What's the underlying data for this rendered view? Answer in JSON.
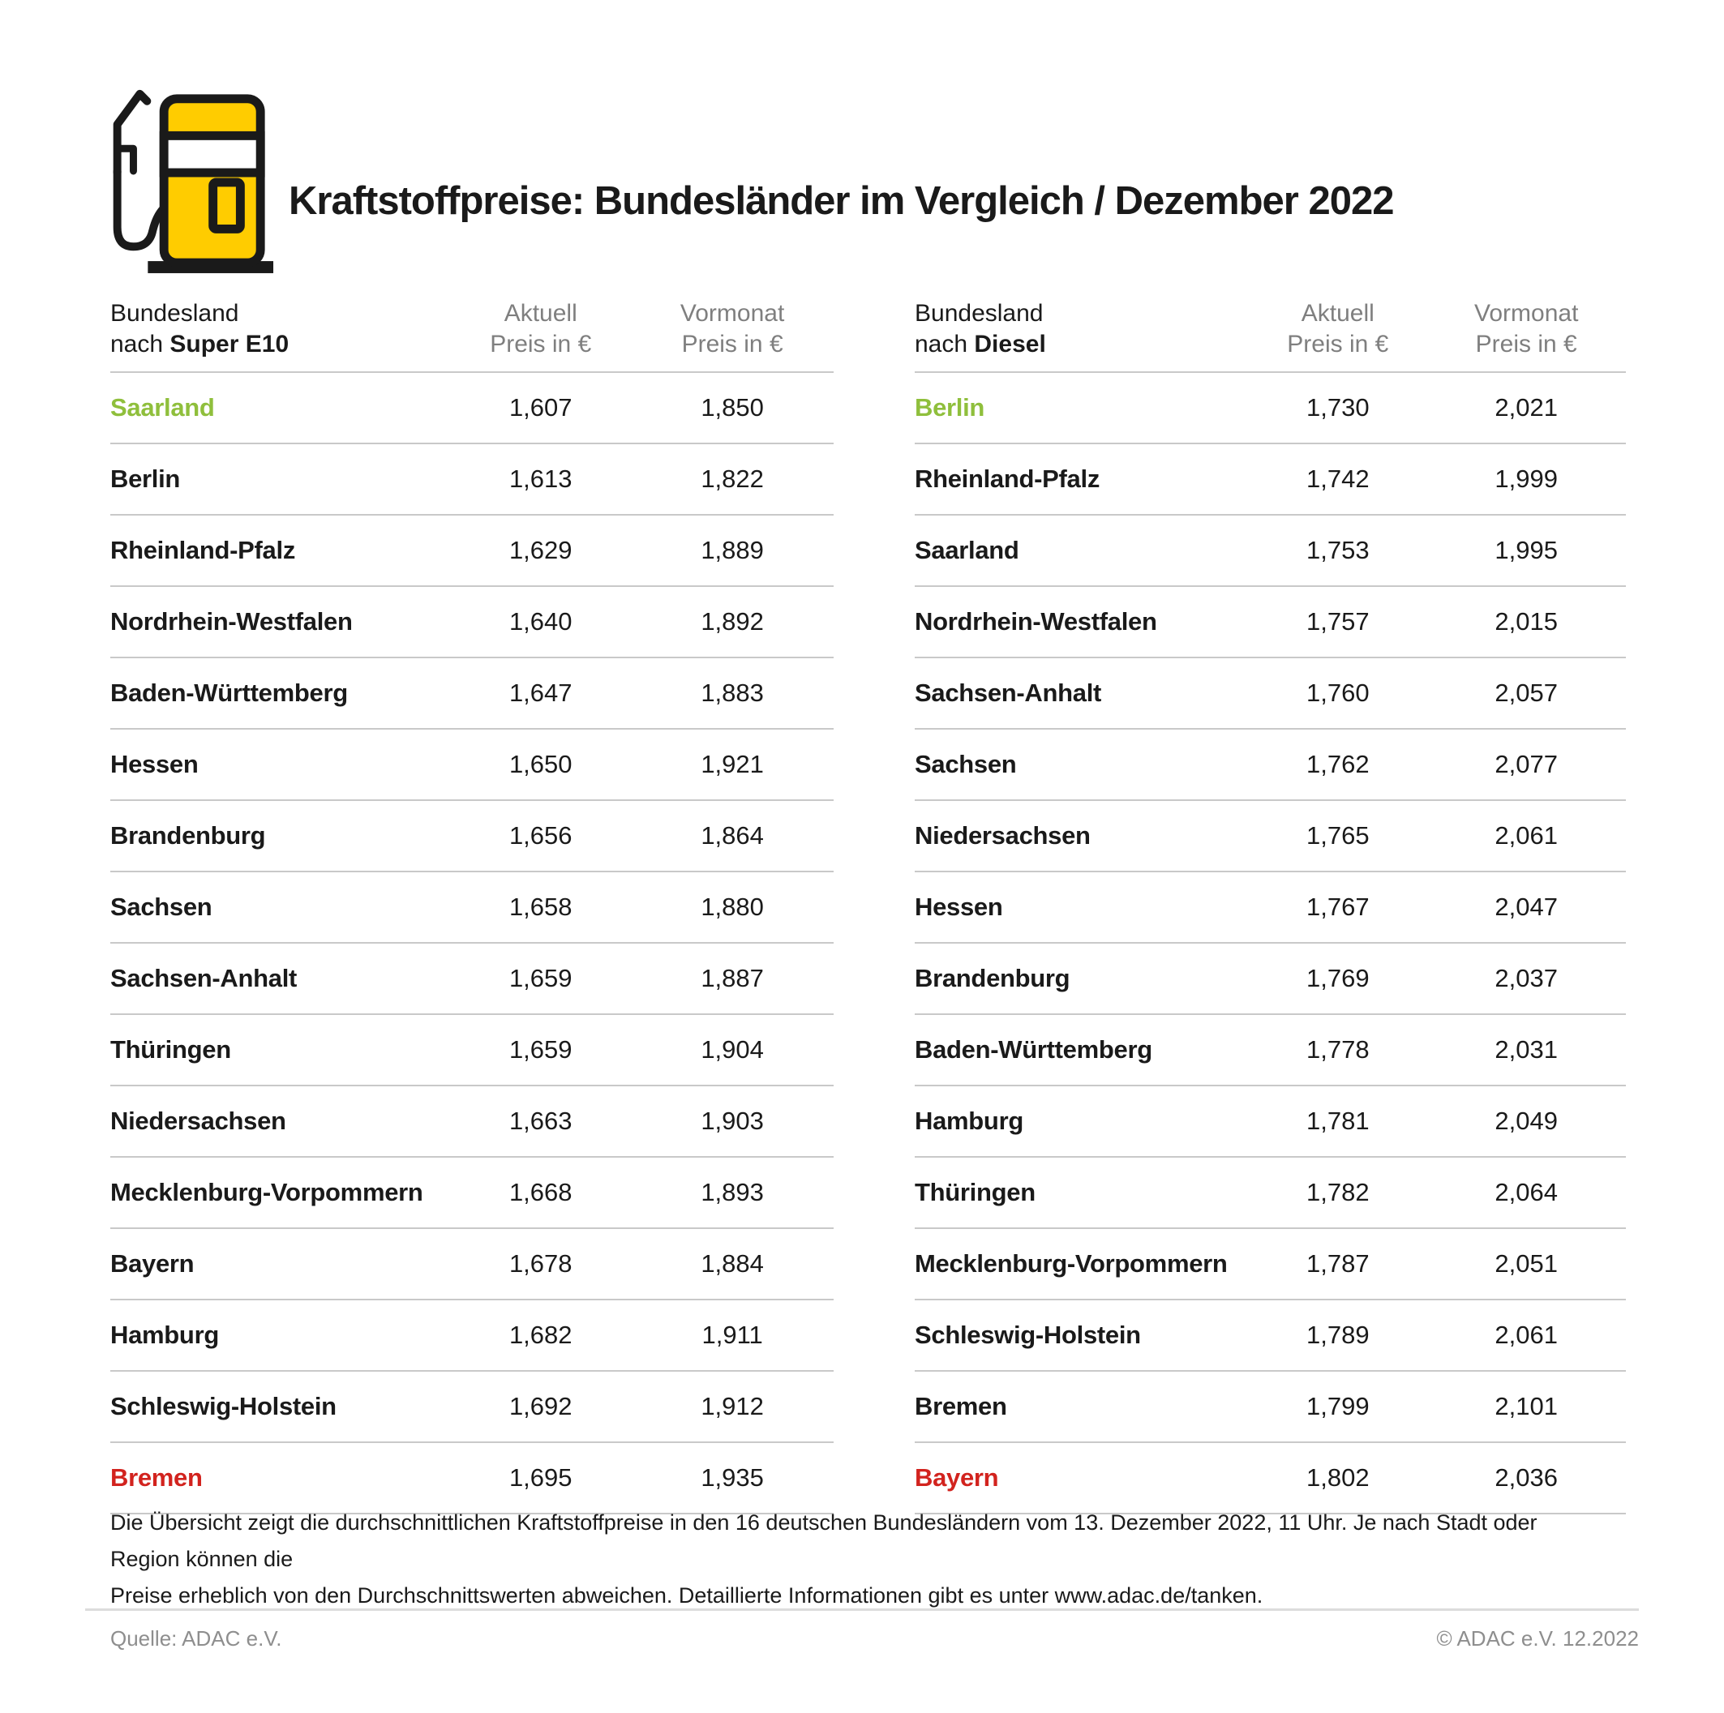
{
  "header": {
    "title": "Kraftstoffpreise: Bundesländer im Vergleich / Dezember 2022"
  },
  "columns": {
    "aktuell": "Aktuell",
    "vormonat": "Vormonat",
    "preis": "Preis in €"
  },
  "colors": {
    "green": "#8fbf3c",
    "red": "#d2231e",
    "yellow": "#ffcc00",
    "text": "#1a1a1a"
  },
  "tables": [
    {
      "header_line1": "Bundesland",
      "header_line2_prefix": "nach ",
      "header_line2_fuel": "Super E10",
      "rows": [
        {
          "name": "Saarland",
          "aktuell": "1,607",
          "vormonat": "1,850",
          "highlight": "green"
        },
        {
          "name": "Berlin",
          "aktuell": "1,613",
          "vormonat": "1,822",
          "highlight": null
        },
        {
          "name": "Rheinland-Pfalz",
          "aktuell": "1,629",
          "vormonat": "1,889",
          "highlight": null
        },
        {
          "name": "Nordrhein-Westfalen",
          "aktuell": "1,640",
          "vormonat": "1,892",
          "highlight": null
        },
        {
          "name": "Baden-Württemberg",
          "aktuell": "1,647",
          "vormonat": "1,883",
          "highlight": null
        },
        {
          "name": "Hessen",
          "aktuell": "1,650",
          "vormonat": "1,921",
          "highlight": null
        },
        {
          "name": "Brandenburg",
          "aktuell": "1,656",
          "vormonat": "1,864",
          "highlight": null
        },
        {
          "name": "Sachsen",
          "aktuell": "1,658",
          "vormonat": "1,880",
          "highlight": null
        },
        {
          "name": "Sachsen-Anhalt",
          "aktuell": "1,659",
          "vormonat": "1,887",
          "highlight": null
        },
        {
          "name": "Thüringen",
          "aktuell": "1,659",
          "vormonat": "1,904",
          "highlight": null
        },
        {
          "name": "Niedersachsen",
          "aktuell": "1,663",
          "vormonat": "1,903",
          "highlight": null
        },
        {
          "name": "Mecklenburg-Vorpommern",
          "aktuell": "1,668",
          "vormonat": "1,893",
          "highlight": null
        },
        {
          "name": "Bayern",
          "aktuell": "1,678",
          "vormonat": "1,884",
          "highlight": null
        },
        {
          "name": "Hamburg",
          "aktuell": "1,682",
          "vormonat": "1,911",
          "highlight": null
        },
        {
          "name": "Schleswig-Holstein",
          "aktuell": "1,692",
          "vormonat": "1,912",
          "highlight": null
        },
        {
          "name": "Bremen",
          "aktuell": "1,695",
          "vormonat": "1,935",
          "highlight": "red"
        }
      ]
    },
    {
      "header_line1": "Bundesland",
      "header_line2_prefix": "nach ",
      "header_line2_fuel": "Diesel",
      "rows": [
        {
          "name": "Berlin",
          "aktuell": "1,730",
          "vormonat": "2,021",
          "highlight": "green"
        },
        {
          "name": "Rheinland-Pfalz",
          "aktuell": "1,742",
          "vormonat": "1,999",
          "highlight": null
        },
        {
          "name": "Saarland",
          "aktuell": "1,753",
          "vormonat": "1,995",
          "highlight": null
        },
        {
          "name": "Nordrhein-Westfalen",
          "aktuell": "1,757",
          "vormonat": "2,015",
          "highlight": null
        },
        {
          "name": "Sachsen-Anhalt",
          "aktuell": "1,760",
          "vormonat": "2,057",
          "highlight": null
        },
        {
          "name": "Sachsen",
          "aktuell": "1,762",
          "vormonat": "2,077",
          "highlight": null
        },
        {
          "name": "Niedersachsen",
          "aktuell": "1,765",
          "vormonat": "2,061",
          "highlight": null
        },
        {
          "name": "Hessen",
          "aktuell": "1,767",
          "vormonat": "2,047",
          "highlight": null
        },
        {
          "name": "Brandenburg",
          "aktuell": "1,769",
          "vormonat": "2,037",
          "highlight": null
        },
        {
          "name": "Baden-Württemberg",
          "aktuell": "1,778",
          "vormonat": "2,031",
          "highlight": null
        },
        {
          "name": "Hamburg",
          "aktuell": "1,781",
          "vormonat": "2,049",
          "highlight": null
        },
        {
          "name": "Thüringen",
          "aktuell": "1,782",
          "vormonat": "2,064",
          "highlight": null
        },
        {
          "name": "Mecklenburg-Vorpommern",
          "aktuell": "1,787",
          "vormonat": "2,051",
          "highlight": null
        },
        {
          "name": "Schleswig-Holstein",
          "aktuell": "1,789",
          "vormonat": "2,061",
          "highlight": null
        },
        {
          "name": "Bremen",
          "aktuell": "1,799",
          "vormonat": "2,101",
          "highlight": null
        },
        {
          "name": "Bayern",
          "aktuell": "1,802",
          "vormonat": "2,036",
          "highlight": "red"
        }
      ]
    }
  ],
  "footnote": {
    "line1": "Die Übersicht zeigt die durchschnittlichen Kraftstoffpreise in den 16 deutschen Bundesländern vom 13. Dezember 2022, 11 Uhr. Je nach Stadt oder Region können die",
    "line2": "Preise erheblich von den Durchschnittswerten abweichen. Detaillierte Informationen gibt es unter www.adac.de/tanken."
  },
  "footer": {
    "source": "Quelle: ADAC e.V.",
    "copyright": "© ADAC e.V. 12.2022"
  },
  "chart_data": [
    {
      "type": "table",
      "title": "Kraftstoffpreise: Bundesländer im Vergleich / Dezember 2022 — Super E10",
      "columns": [
        "Bundesland nach Super E10",
        "Aktuell Preis in €",
        "Vormonat Preis in €"
      ],
      "rows": [
        [
          "Saarland",
          1.607,
          1.85
        ],
        [
          "Berlin",
          1.613,
          1.822
        ],
        [
          "Rheinland-Pfalz",
          1.629,
          1.889
        ],
        [
          "Nordrhein-Westfalen",
          1.64,
          1.892
        ],
        [
          "Baden-Württemberg",
          1.647,
          1.883
        ],
        [
          "Hessen",
          1.65,
          1.921
        ],
        [
          "Brandenburg",
          1.656,
          1.864
        ],
        [
          "Sachsen",
          1.658,
          1.88
        ],
        [
          "Sachsen-Anhalt",
          1.659,
          1.887
        ],
        [
          "Thüringen",
          1.659,
          1.904
        ],
        [
          "Niedersachsen",
          1.663,
          1.903
        ],
        [
          "Mecklenburg-Vorpommern",
          1.668,
          1.893
        ],
        [
          "Bayern",
          1.678,
          1.884
        ],
        [
          "Hamburg",
          1.682,
          1.911
        ],
        [
          "Schleswig-Holstein",
          1.692,
          1.912
        ],
        [
          "Bremen",
          1.695,
          1.935
        ]
      ]
    },
    {
      "type": "table",
      "title": "Kraftstoffpreise: Bundesländer im Vergleich / Dezember 2022 — Diesel",
      "columns": [
        "Bundesland nach Diesel",
        "Aktuell Preis in €",
        "Vormonat Preis in €"
      ],
      "rows": [
        [
          "Berlin",
          1.73,
          2.021
        ],
        [
          "Rheinland-Pfalz",
          1.742,
          1.999
        ],
        [
          "Saarland",
          1.753,
          1.995
        ],
        [
          "Nordrhein-Westfalen",
          1.757,
          2.015
        ],
        [
          "Sachsen-Anhalt",
          1.76,
          2.057
        ],
        [
          "Sachsen",
          1.762,
          2.077
        ],
        [
          "Niedersachsen",
          1.765,
          2.061
        ],
        [
          "Hessen",
          1.767,
          2.047
        ],
        [
          "Brandenburg",
          1.769,
          2.037
        ],
        [
          "Baden-Württemberg",
          1.778,
          2.031
        ],
        [
          "Hamburg",
          1.781,
          2.049
        ],
        [
          "Thüringen",
          1.782,
          2.064
        ],
        [
          "Mecklenburg-Vorpommern",
          1.787,
          2.051
        ],
        [
          "Schleswig-Holstein",
          1.789,
          2.061
        ],
        [
          "Bremen",
          1.799,
          2.101
        ],
        [
          "Bayern",
          1.802,
          2.036
        ]
      ]
    }
  ]
}
